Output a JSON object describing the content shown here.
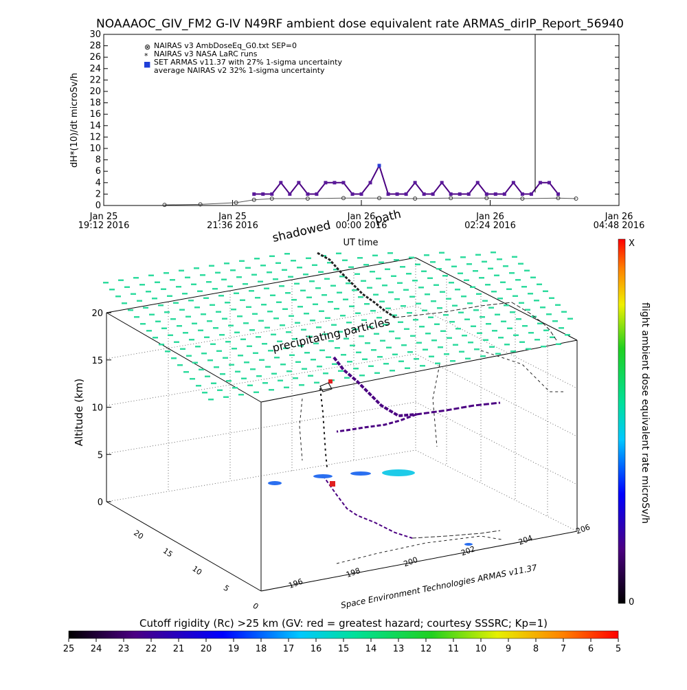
{
  "title": "NOAAAOC_GIV_FM2 G-IV   N49RF  ambient dose equivalent rate ARMAS_dirIP_Report_56940",
  "top_chart": {
    "ylabel": "dH*(10)/dt microSv/h",
    "xlabel": "UT time",
    "yticks": [
      "0",
      "2",
      "4",
      "6",
      "8",
      "10",
      "12",
      "14",
      "16",
      "18",
      "20",
      "22",
      "24",
      "26",
      "28",
      "30"
    ],
    "xticks": [
      {
        "day": "Jan 25",
        "time": "19:12 2016"
      },
      {
        "day": "Jan 25",
        "time": "21:36 2016"
      },
      {
        "day": "Jan 26",
        "time": "00:00 2016"
      },
      {
        "day": "Jan 26",
        "time": "02:24 2016"
      },
      {
        "day": "Jan 26",
        "time": "04:48 2016"
      }
    ],
    "legend": [
      {
        "symbol": "⊗",
        "text": "NAIRAS v3 AmbDoseEq_G0.txt SEP=0"
      },
      {
        "symbol": "*",
        "text": "NAIRAS v3 NASA LaRC runs"
      },
      {
        "symbol": "■",
        "text": "SET ARMAS v11.37 with 27% 1-sigma uncertainty"
      },
      {
        "symbol": "",
        "text": "average NAIRAS v2 32% 1-sigma uncertainty"
      }
    ]
  },
  "scene3d": {
    "label_shadowed": "shadowed",
    "label_path": "path",
    "label_precip": "precipitating particles",
    "z_label": "Altitude (km)",
    "z_ticks": [
      "0",
      "5",
      "10",
      "15",
      "20"
    ],
    "lat_ticks": [
      "0",
      "5",
      "10",
      "15",
      "20"
    ],
    "lon_ticks": [
      "196",
      "198",
      "200",
      "202",
      "204",
      "206"
    ],
    "credit": "Space Environment Technologies ARMAS v11.37"
  },
  "colorbar_v": {
    "label": "flight ambient dose equivalent rate microSv/h",
    "top": "X",
    "bottom": "0"
  },
  "colorbar_h": {
    "label": "Cutoff rigidity (Rc) >25 km (GV: red = greatest hazard; courtesy SSSRC; Kp=1)",
    "ticks": [
      "25",
      "24",
      "23",
      "22",
      "21",
      "20",
      "19",
      "18",
      "17",
      "16",
      "15",
      "14",
      "13",
      "12",
      "11",
      "10",
      "9",
      "8",
      "7",
      "6",
      "5"
    ]
  },
  "colors": {
    "armas": "#4b0082",
    "armas_marker": "#5a1a9a",
    "grid_dots": "#2edb9e",
    "spike_marker": "#2a3fd6"
  },
  "chart_data": {
    "type": "line",
    "title": "NOAAAOC_GIV_FM2 G-IV   N49RF  ambient dose equivalent rate ARMAS_dirIP_Report_56940",
    "xlabel": "UT time",
    "ylabel": "dH*(10)/dt microSv/h",
    "xlim": [
      "2016-01-25T19:12",
      "2016-01-26T04:48"
    ],
    "ylim": [
      0,
      30
    ],
    "series": [
      {
        "name": "SET ARMAS v11.37 with 27% 1-sigma uncertainty",
        "x": [
          "2016-01-25T22:00",
          "2016-01-25T22:10",
          "2016-01-25T22:20",
          "2016-01-25T22:30",
          "2016-01-25T22:40",
          "2016-01-25T22:50",
          "2016-01-25T23:00",
          "2016-01-25T23:10",
          "2016-01-25T23:20",
          "2016-01-25T23:30",
          "2016-01-25T23:40",
          "2016-01-25T23:50",
          "2016-01-26T00:00",
          "2016-01-26T00:10",
          "2016-01-26T00:20",
          "2016-01-26T00:30",
          "2016-01-26T00:40",
          "2016-01-26T00:50",
          "2016-01-26T01:00",
          "2016-01-26T01:10",
          "2016-01-26T01:20",
          "2016-01-26T01:30",
          "2016-01-26T01:40",
          "2016-01-26T01:50",
          "2016-01-26T02:00",
          "2016-01-26T02:10",
          "2016-01-26T02:20",
          "2016-01-26T02:30",
          "2016-01-26T02:40",
          "2016-01-26T02:50",
          "2016-01-26T03:00",
          "2016-01-26T03:10",
          "2016-01-26T03:20",
          "2016-01-26T03:30",
          "2016-01-26T03:40"
        ],
        "values": [
          2,
          2,
          2,
          4,
          2,
          4,
          2,
          2,
          4,
          4,
          4,
          2,
          2,
          4,
          7,
          2,
          2,
          2,
          4,
          2,
          2,
          4,
          2,
          2,
          2,
          4,
          2,
          2,
          2,
          4,
          2,
          2,
          4,
          4,
          2
        ]
      },
      {
        "name": "NAIRAS v3 AmbDoseEq_G0.txt SEP=0",
        "x": [
          "2016-01-25T20:20",
          "2016-01-25T21:00",
          "2016-01-25T21:40",
          "2016-01-25T22:00",
          "2016-01-25T22:20",
          "2016-01-25T23:00",
          "2016-01-25T23:40",
          "2016-01-26T00:20",
          "2016-01-26T01:00",
          "2016-01-26T01:40",
          "2016-01-26T02:20",
          "2016-01-26T03:00",
          "2016-01-26T03:40",
          "2016-01-26T04:00"
        ],
        "values": [
          0.1,
          0.2,
          0.5,
          1.0,
          1.2,
          1.2,
          1.3,
          1.3,
          1.2,
          1.3,
          1.3,
          1.2,
          1.3,
          1.2
        ]
      }
    ]
  }
}
